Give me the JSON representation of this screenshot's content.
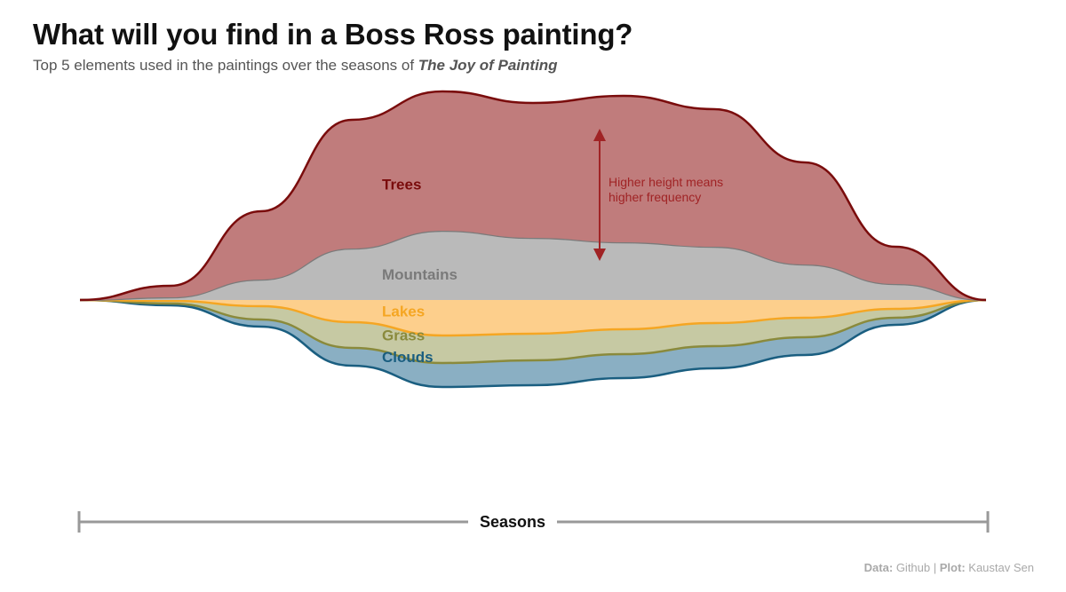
{
  "header": {
    "title": "What will you find in a Boss Ross painting?",
    "subtitle_prefix": "Top 5 elements used in the paintings over the seasons of ",
    "subtitle_emph": "The Joy of Painting"
  },
  "chart_data": {
    "type": "area",
    "style": "streamgraph",
    "title": "What will you find in a Boss Ross painting?",
    "xlabel": "Seasons",
    "ylabel": "",
    "x_ticks": false,
    "y_ticks": false,
    "grid": false,
    "legend": "inline labels",
    "x": [
      0,
      0.1,
      0.2,
      0.3,
      0.4,
      0.5,
      0.6,
      0.7,
      0.8,
      0.9,
      1.0
    ],
    "series": [
      {
        "name": "Clouds",
        "color": "#1a5e80",
        "fill": "#8aafc3",
        "values": [
          0,
          2,
          8,
          20,
          27,
          28,
          27,
          25,
          20,
          8,
          0
        ]
      },
      {
        "name": "Grass",
        "color": "#8a8a3c",
        "fill": "#c6c9a3",
        "values": [
          0,
          3,
          15,
          29,
          31,
          30,
          28,
          26,
          22,
          10,
          0
        ]
      },
      {
        "name": "Lakes",
        "color": "#f5a623",
        "fill": "#fdcf8c",
        "values": [
          0,
          1,
          7,
          25,
          40,
          38,
          33,
          26,
          20,
          10,
          0
        ]
      },
      {
        "name": "Mountains",
        "color": "#7a7a7a",
        "fill": "#bababa",
        "values": [
          0,
          3,
          23,
          58,
          78,
          70,
          65,
          60,
          40,
          18,
          0
        ]
      },
      {
        "name": "Trees",
        "color": "#7a0c0c",
        "fill": "#c07c7c",
        "values": [
          0,
          13,
          77,
          145,
          157,
          152,
          165,
          155,
          115,
          42,
          0
        ]
      }
    ],
    "annotation": {
      "lines": [
        "Higher height means",
        "higher frequency"
      ],
      "color": "#a02325"
    }
  },
  "caption": {
    "data_label": "Data:",
    "data_value": "Github",
    "separator": "|",
    "plot_label": "Plot:",
    "plot_value": "Kaustav Sen"
  }
}
